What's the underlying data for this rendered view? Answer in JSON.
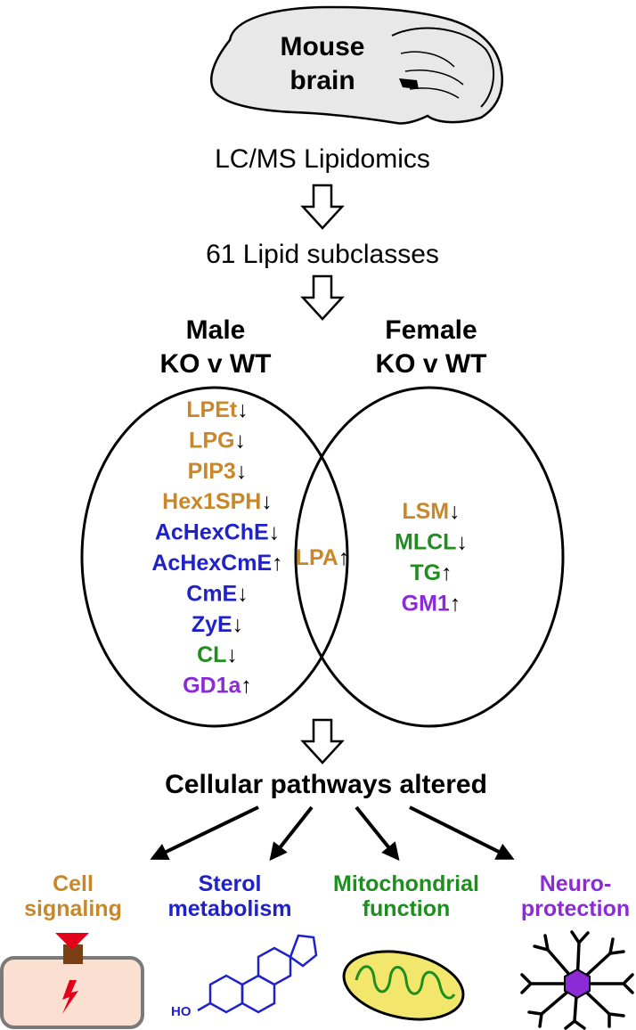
{
  "brain": {
    "label_line1": "Mouse",
    "label_line2": "brain"
  },
  "steps": {
    "method": "LC/MS Lipidomics",
    "subclasses": "61 Lipid subclasses"
  },
  "groups": {
    "male": {
      "line1": "Male",
      "line2": "KO v WT"
    },
    "female": {
      "line1": "Female",
      "line2": "KO v WT"
    }
  },
  "colors": {
    "signaling": "#C8872A",
    "sterol": "#1F22C8",
    "mito": "#1E8E1E",
    "neuro": "#8B2BD6"
  },
  "male_only": [
    {
      "name": "LPEt",
      "arrow": "↓",
      "category": "signaling"
    },
    {
      "name": "LPG",
      "arrow": "↓",
      "category": "signaling"
    },
    {
      "name": "PIP3",
      "arrow": "↓",
      "category": "signaling"
    },
    {
      "name": "Hex1SPH",
      "arrow": "↓",
      "category": "signaling"
    },
    {
      "name": "AcHexChE",
      "arrow": "↓",
      "category": "sterol"
    },
    {
      "name": "AcHexCmE",
      "arrow": "↑",
      "category": "sterol"
    },
    {
      "name": "CmE",
      "arrow": "↓",
      "category": "sterol"
    },
    {
      "name": "ZyE",
      "arrow": "↓",
      "category": "sterol"
    },
    {
      "name": "CL",
      "arrow": "↓",
      "category": "mito"
    },
    {
      "name": "GD1a",
      "arrow": "↑",
      "category": "neuro"
    }
  ],
  "shared": [
    {
      "name": "LPA",
      "arrow": "↑",
      "category": "signaling"
    }
  ],
  "female_only": [
    {
      "name": "LSM",
      "arrow": "↓",
      "category": "signaling"
    },
    {
      "name": "MLCL",
      "arrow": "↓",
      "category": "mito"
    },
    {
      "name": "TG",
      "arrow": "↑",
      "category": "mito"
    },
    {
      "name": "GM1",
      "arrow": "↑",
      "category": "neuro"
    }
  ],
  "pathways": {
    "title": "Cellular pathways altered",
    "items": [
      {
        "lines": [
          "Cell",
          "signaling"
        ],
        "category": "signaling",
        "icon": "cell-membrane-icon"
      },
      {
        "lines": [
          "Sterol",
          "metabolism"
        ],
        "category": "sterol",
        "icon": "sterol-structure-icon"
      },
      {
        "lines": [
          "Mitochondrial",
          "function"
        ],
        "category": "mito",
        "icon": "mitochondrion-icon"
      },
      {
        "lines": [
          "Neuro-",
          "protection"
        ],
        "category": "neuro",
        "icon": "neuron-icon"
      }
    ]
  },
  "sterol_structure": {
    "substituent": "HO"
  }
}
